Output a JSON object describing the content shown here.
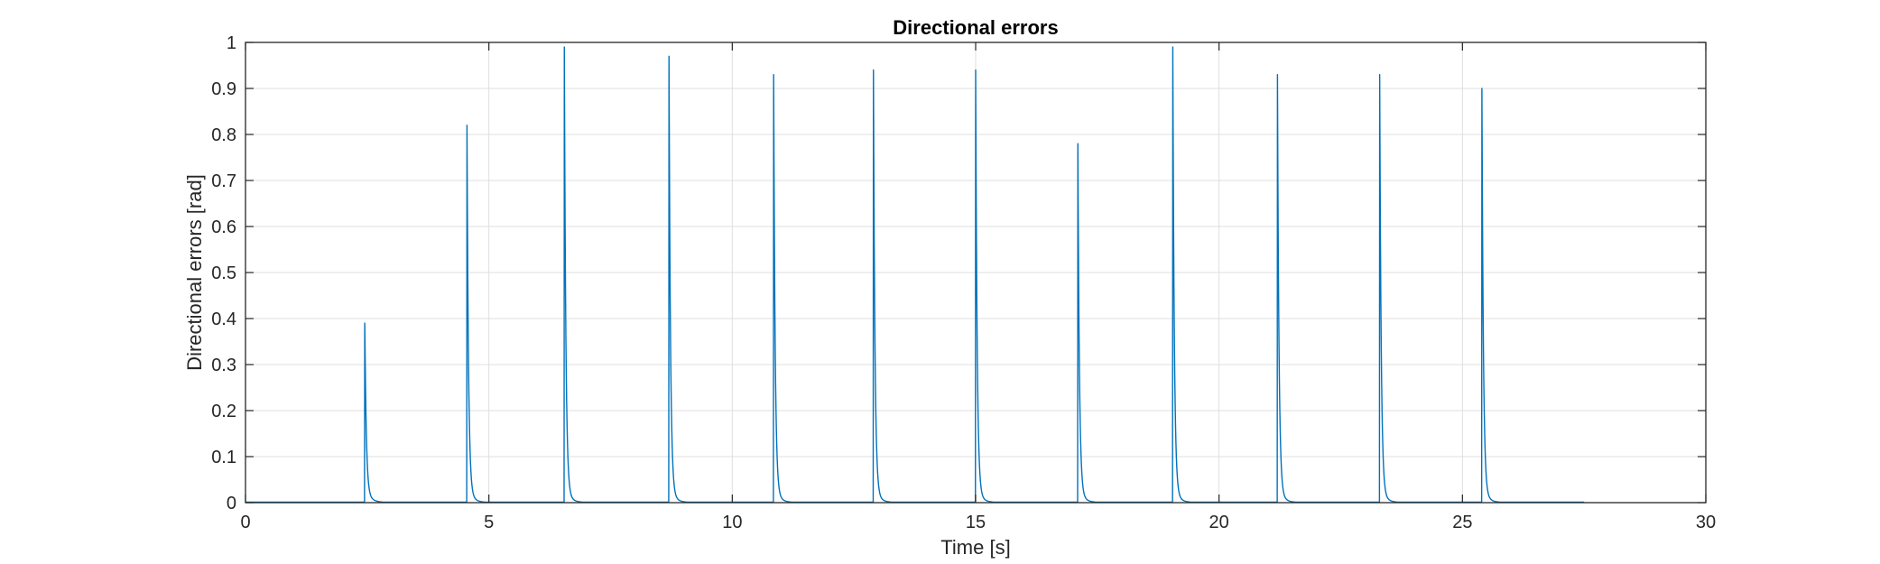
{
  "chart_data": {
    "type": "line",
    "title": "Directional errors",
    "xlabel": "Time [s]",
    "ylabel": "Directional errors [rad]",
    "xlim": [
      0,
      30
    ],
    "ylim": [
      0,
      1
    ],
    "xticks": [
      0,
      5,
      10,
      15,
      20,
      25,
      30
    ],
    "yticks": [
      0,
      0.1,
      0.2,
      0.3,
      0.4,
      0.5,
      0.6,
      0.7,
      0.8,
      0.9,
      1
    ],
    "grid": true,
    "line_color": "#0072BD",
    "data_end_time": 27.5,
    "series": [
      {
        "peaks": [
          {
            "t": 2.45,
            "v": 0.39
          },
          {
            "t": 4.55,
            "v": 0.82
          },
          {
            "t": 6.55,
            "v": 0.99
          },
          {
            "t": 8.7,
            "v": 0.97
          },
          {
            "t": 10.85,
            "v": 0.93
          },
          {
            "t": 12.9,
            "v": 0.94
          },
          {
            "t": 15.0,
            "v": 0.94
          },
          {
            "t": 17.1,
            "v": 0.78
          },
          {
            "t": 19.05,
            "v": 0.99
          },
          {
            "t": 21.2,
            "v": 0.93
          },
          {
            "t": 23.3,
            "v": 0.93
          },
          {
            "t": 25.4,
            "v": 0.9
          }
        ]
      }
    ]
  }
}
